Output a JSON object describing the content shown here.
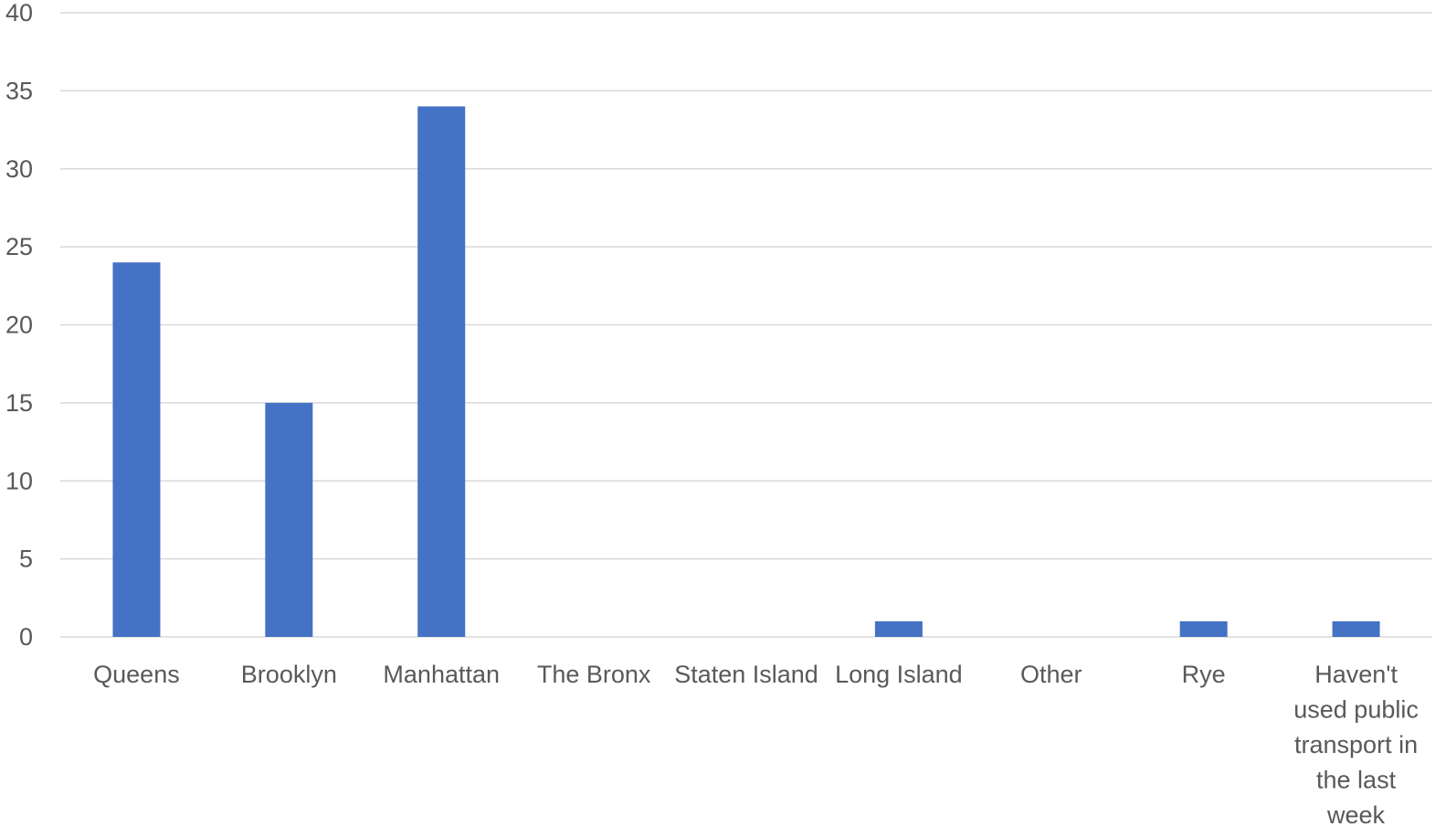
{
  "chart_data": {
    "type": "bar",
    "title": "",
    "xlabel": "",
    "ylabel": "",
    "categories": [
      "Queens",
      "Brooklyn",
      "Manhattan",
      "The Bronx",
      "Staten Island",
      "Long Island",
      "Other",
      "Rye",
      "Haven't used public transport in the last week"
    ],
    "category_lines": [
      [
        "Queens"
      ],
      [
        "Brooklyn"
      ],
      [
        "Manhattan"
      ],
      [
        "The Bronx"
      ],
      [
        "Staten Island"
      ],
      [
        "Long Island"
      ],
      [
        "Other"
      ],
      [
        "Rye"
      ],
      [
        "Haven't",
        "used public",
        "transport in",
        "the last",
        "week"
      ]
    ],
    "values": [
      24,
      15,
      34,
      0,
      0,
      1,
      0,
      1,
      1
    ],
    "ylim": [
      0,
      40
    ],
    "yticks": [
      0,
      5,
      10,
      15,
      20,
      25,
      30,
      35,
      40
    ],
    "grid": true,
    "legend": "none",
    "bar_color": "#4472c4"
  }
}
